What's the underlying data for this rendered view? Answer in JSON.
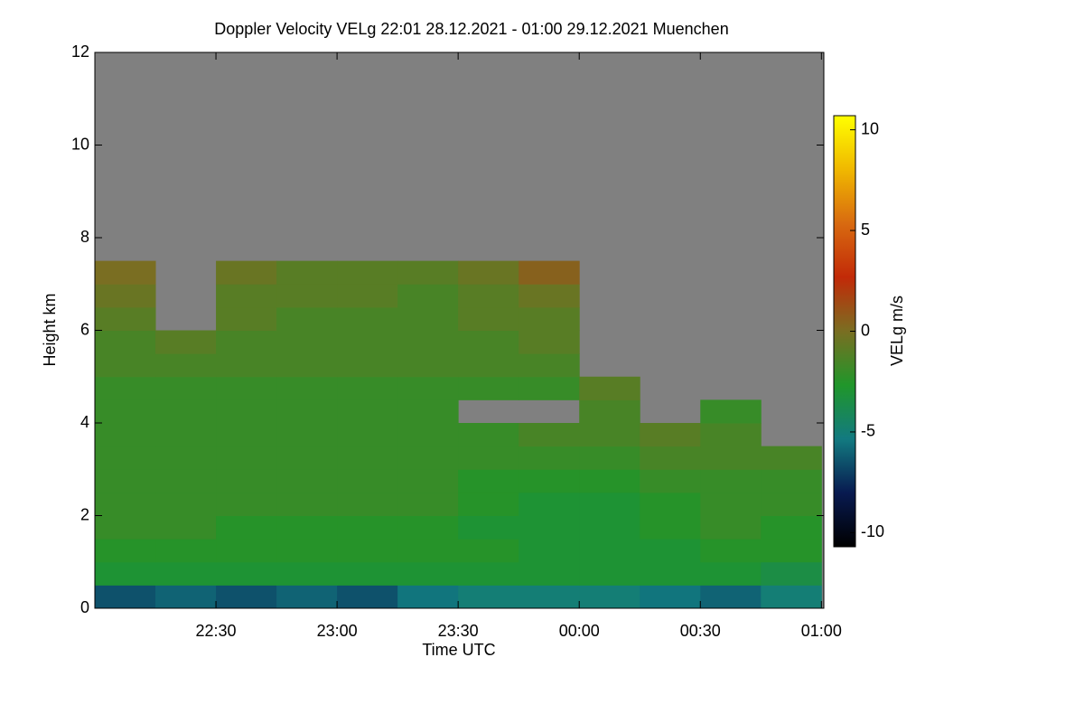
{
  "chart_data": {
    "type": "heatmap",
    "title": "Doppler Velocity VELg   22:01 28.12.2021 - 01:00 29.12.2021 Muenchen",
    "x_label": "Time UTC",
    "y_label": "Height km",
    "colorbar_label": "VELg m/s",
    "x_bins": [
      22.0,
      22.25,
      22.5,
      22.75,
      23.0,
      23.25,
      23.5,
      23.75,
      24.0,
      24.25,
      24.5,
      24.75,
      25.0
    ],
    "y_bins": [
      0,
      0.5,
      1,
      1.5,
      2,
      2.5,
      3,
      3.5,
      4,
      4.5,
      5,
      5.5,
      6,
      6.5,
      7,
      7.5,
      8,
      8.5,
      9,
      9.5,
      10,
      10.5,
      11,
      11.5,
      12
    ],
    "values": [
      [
        -6.5,
        -6,
        -6.5,
        -6,
        -6.5,
        -5.5,
        -5,
        -5,
        -5,
        -5.5,
        -6,
        -5
      ],
      [
        -3,
        -3,
        -3,
        -3,
        -3,
        -3,
        -3,
        -3,
        -3,
        -3,
        -3,
        -3.5
      ],
      [
        -2.5,
        -2.5,
        -2.5,
        -2.5,
        -2.5,
        -2.5,
        -2.5,
        -3,
        -3,
        -3,
        -2.5,
        -2.5
      ],
      [
        -2,
        -2,
        -2.5,
        -2.5,
        -2.5,
        -2.5,
        -3,
        -3,
        -3,
        -2.5,
        -2,
        -2.5
      ],
      [
        -2,
        -2,
        -2,
        -2,
        -2,
        -2,
        -2.5,
        -3,
        -3,
        -2.5,
        -2,
        -2
      ],
      [
        -2,
        -2,
        -2,
        -2,
        -2,
        -2,
        -2.5,
        -2.5,
        -2.5,
        -2,
        -2,
        -2
      ],
      [
        -2,
        -2,
        -2,
        -2,
        -2,
        -2,
        -2,
        -2,
        -2,
        -1.5,
        -1.5,
        -1.5
      ],
      [
        -2,
        -2,
        -2,
        -2,
        -2,
        -2,
        -2,
        -1.5,
        -1.5,
        -1,
        -1.5,
        null
      ],
      [
        -2,
        -2,
        -2,
        -2,
        -2,
        -2,
        null,
        null,
        -1.5,
        null,
        -2,
        null
      ],
      [
        -2,
        -2,
        -2,
        -2,
        -2,
        -2,
        -2,
        -2,
        -1,
        null,
        null,
        null
      ],
      [
        -1.5,
        -1.5,
        -1.5,
        -1.5,
        -1.5,
        -1.5,
        -1.5,
        -1.5,
        null,
        null,
        null,
        null
      ],
      [
        -1.5,
        -1,
        -1.5,
        -1.5,
        -1.5,
        -1.5,
        -1.5,
        -1,
        null,
        null,
        null,
        null
      ],
      [
        -1,
        null,
        -1,
        -1.5,
        -1.5,
        -1.5,
        -1,
        -1,
        null,
        null,
        null,
        null
      ],
      [
        -0.5,
        null,
        -1,
        -1,
        -1,
        -1.5,
        -1,
        -0.5,
        null,
        null,
        null,
        null
      ],
      [
        0,
        null,
        -0.5,
        -1,
        -1,
        -1,
        -0.5,
        0.5,
        null,
        null,
        null,
        null
      ],
      [
        null,
        null,
        null,
        null,
        null,
        null,
        null,
        null,
        null,
        null,
        null,
        null
      ],
      [
        null,
        null,
        null,
        null,
        null,
        null,
        null,
        null,
        null,
        null,
        null,
        null
      ],
      [
        null,
        null,
        null,
        null,
        null,
        null,
        null,
        null,
        null,
        null,
        null,
        null
      ],
      [
        null,
        null,
        null,
        null,
        null,
        null,
        null,
        null,
        null,
        null,
        null,
        null
      ],
      [
        null,
        null,
        null,
        null,
        null,
        null,
        null,
        null,
        null,
        null,
        null,
        null
      ],
      [
        null,
        null,
        null,
        null,
        null,
        null,
        null,
        null,
        null,
        null,
        null,
        null
      ],
      [
        null,
        null,
        null,
        null,
        null,
        null,
        null,
        null,
        null,
        null,
        null,
        null
      ],
      [
        null,
        null,
        null,
        null,
        null,
        null,
        null,
        null,
        null,
        null,
        null,
        null
      ],
      [
        null,
        null,
        null,
        null,
        null,
        null,
        null,
        null,
        null,
        null,
        null,
        null
      ]
    ],
    "xlim": [
      22.0,
      25.01
    ],
    "xticks": [
      {
        "value": 22.5,
        "label": "22:30"
      },
      {
        "value": 23.0,
        "label": "23:00"
      },
      {
        "value": 23.5,
        "label": "23:30"
      },
      {
        "value": 24.0,
        "label": "00:00"
      },
      {
        "value": 24.5,
        "label": "00:30"
      },
      {
        "value": 25.0,
        "label": "01:00"
      }
    ],
    "ylim": [
      0,
      12
    ],
    "yticks": [
      0,
      2,
      4,
      6,
      8,
      10,
      12
    ],
    "zlim": [
      -10.7,
      10.7
    ],
    "zticks": [
      -10,
      -5,
      0,
      5,
      10
    ],
    "colormap": [
      "#000000",
      "#081a50",
      "#127a80",
      "#20962a",
      "#7a6e22",
      "#c22a08",
      "#d86a10",
      "#f0b800",
      "#ffff00"
    ],
    "missing_color": "#808080"
  }
}
